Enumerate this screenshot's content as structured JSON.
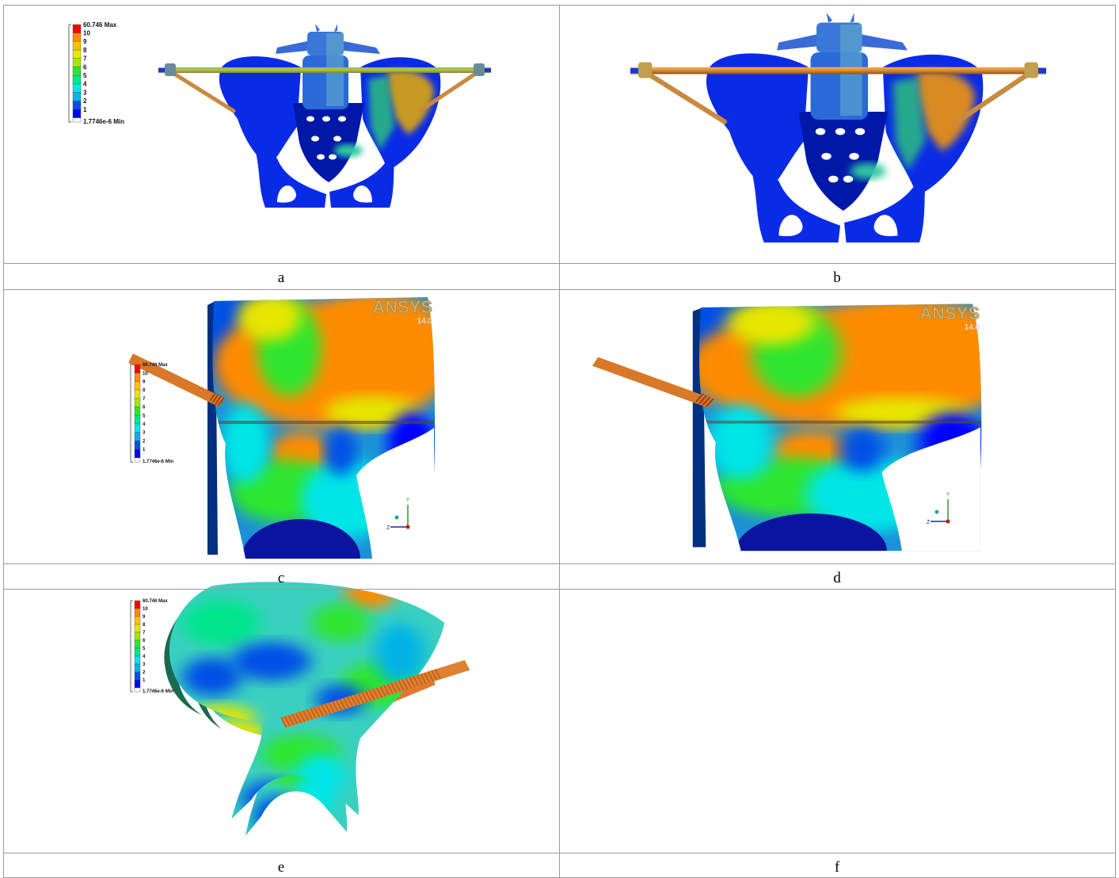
{
  "legend": {
    "max": "60.746 Max",
    "levels": [
      "10",
      "9",
      "8",
      "7",
      "6",
      "5",
      "4",
      "3",
      "2",
      "1"
    ],
    "min": "1.7746e-6 Min",
    "colors": [
      "#ff0000",
      "#ff8c00",
      "#ffc000",
      "#e6e600",
      "#a6e600",
      "#2ee62e",
      "#00e68c",
      "#00e6e6",
      "#00b4e6",
      "#0050e6",
      "#0000ff"
    ]
  },
  "watermark": {
    "brand": "ANSYS",
    "version": "14.0"
  },
  "triad": {
    "y": "Y",
    "z": "Z"
  },
  "panels": [
    {
      "caption": "a",
      "legend": true,
      "watermark": false
    },
    {
      "caption": "b",
      "legend": false,
      "watermark": false
    },
    {
      "caption": "c",
      "legend": true,
      "watermark": true
    },
    {
      "caption": "d",
      "legend": false,
      "watermark": true
    },
    {
      "caption": "e",
      "legend": true,
      "watermark": false
    },
    {
      "caption": "f",
      "legend": false,
      "watermark": false
    }
  ]
}
